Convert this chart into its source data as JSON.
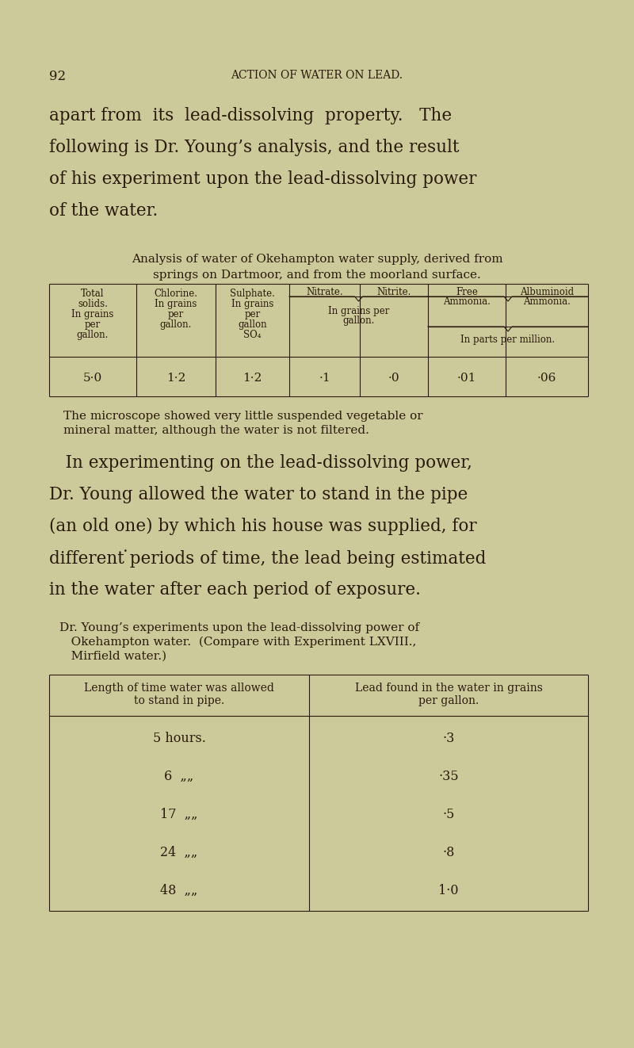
{
  "bg_color": "#ccc99a",
  "text_color": "#2a1a08",
  "page_number": "92",
  "page_header": "ACTION OF WATER ON LEAD.",
  "para1_lines": [
    "apart from  its  lead-dissolving  property.   The",
    "following is Dr. Young’s analysis, and the result",
    "of his experiment upon the lead-dissolving power",
    "of the water."
  ],
  "caption1_line1": "Analysis of water of Okehampton water supply, derived from",
  "caption1_line2": "springs on Dartmoor, and from the moorland surface.",
  "table1_values": [
    "5·0",
    "1·2",
    "1·2",
    "·1",
    "·0",
    "·01",
    "·06"
  ],
  "para2_line1": "The microscope showed very little suspended vegetable or",
  "para2_line2": "mineral matter, although the water is not filtered.",
  "para3_lines": [
    "   In experimenting on the lead-dissolving power,",
    "Dr. Young allowed the water to stand in the pipe",
    "(an old one) by which his house was supplied, for",
    "different ̇periods of time, the lead being estimated",
    "in the water after each period of exposure."
  ],
  "caption2_line1": "Dr. Young’s experiments upon the lead-dissolving power of",
  "caption2_line2": "   Okehampton water.  (Compare with Experiment LXVIII.,",
  "caption2_line3": "   Mirfield water.)",
  "table2_col1_header_l1": "Length of time water was allowed",
  "table2_col1_header_l2": "to stand in pipe.",
  "table2_col2_header_l1": "Lead found in the water in grains",
  "table2_col2_header_l2": "per gallon.",
  "table2_rows": [
    [
      "5 hours.",
      "·3"
    ],
    [
      "6  „„",
      "·35"
    ],
    [
      "17  „„",
      "·5"
    ],
    [
      "24  „„",
      "·8"
    ],
    [
      "48  „„",
      "1·0"
    ]
  ]
}
